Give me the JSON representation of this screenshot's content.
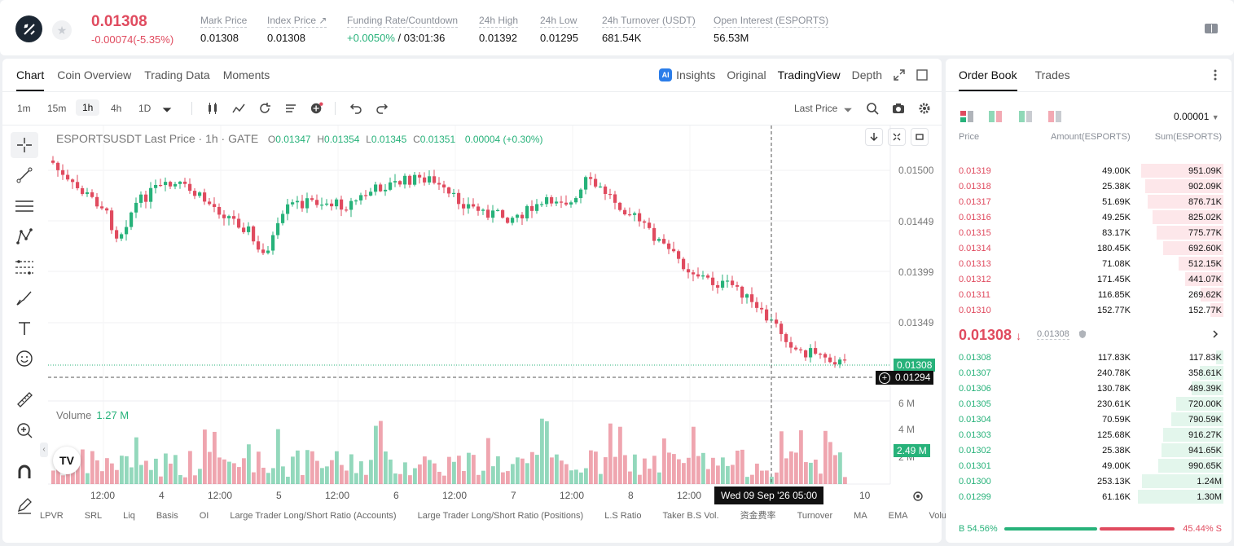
{
  "ticker": {
    "last_price": "0.01308",
    "change": "-0.00074(-5.35%)",
    "stats": [
      {
        "label": "Mark Price",
        "value": "0.01308"
      },
      {
        "label": "Index Price ↗",
        "value": "0.01308"
      },
      {
        "label": "Funding Rate/Countdown",
        "value": "+0.0050%",
        "value2": " / 03:01:36"
      },
      {
        "label": "24h High",
        "value": "0.01392"
      },
      {
        "label": "24h Low",
        "value": "0.01295"
      },
      {
        "label": "24h Turnover (USDT)",
        "value": "681.54K"
      },
      {
        "label": "Open Interest (ESPORTS)",
        "value": "56.53M"
      }
    ]
  },
  "tabs": [
    "Chart",
    "Coin Overview",
    "Trading Data",
    "Moments"
  ],
  "right_tabs": {
    "insights": "Insights",
    "original": "Original",
    "tradingview": "TradingView",
    "depth": "Depth"
  },
  "intervals": [
    "1m",
    "15m",
    "1h",
    "4h",
    "1D"
  ],
  "toolbar": {
    "last_price": "Last Price"
  },
  "legend": {
    "symbol": "ESPORTSUSDT Last Price · 1h · GATE",
    "o_l": "O",
    "o": "0.01347",
    "h_l": "H",
    "h": "0.01354",
    "l_l": "L",
    "l": "0.01345",
    "c_l": "C",
    "c": "0.01351",
    "chg": "0.00004 (+0.30%)"
  },
  "volume": {
    "label": "Volume",
    "value": "1.27 M",
    "axis": [
      "6 M",
      "4 M",
      "2 M"
    ],
    "tag": "2.49 M"
  },
  "price_axis": [
    "0.01500",
    "0.01449",
    "0.01399",
    "0.01349"
  ],
  "price_tags": {
    "last": "0.01308",
    "cross": "0.01294"
  },
  "x_labels": [
    "12:00",
    "4",
    "12:00",
    "5",
    "12:00",
    "6",
    "12:00",
    "7",
    "12:00",
    "8",
    "12:00",
    "10"
  ],
  "crosshair_time": "Wed 09 Sep '26   05:00",
  "indicators": [
    "LPVR",
    "SRL",
    "Liq",
    "Basis",
    "OI",
    "Large Trader Long/Short Ratio (Accounts)",
    "Large Trader Long/Short Ratio (Positions)",
    "L.S Ratio",
    "Taker B.S Vol.",
    "资金费率",
    "Turnover",
    "MA",
    "EMA",
    "Volu"
  ],
  "orderbook": {
    "tabs": [
      "Order Book",
      "Trades"
    ],
    "precision": "0.00001",
    "headers": [
      "Price",
      "Amount(ESPORTS)",
      "Sum(ESPORTS)"
    ],
    "asks": [
      {
        "p": "0.01319",
        "a": "49.00K",
        "s": "951.09K",
        "d": 0.96
      },
      {
        "p": "0.01318",
        "a": "25.38K",
        "s": "902.09K",
        "d": 0.91
      },
      {
        "p": "0.01317",
        "a": "51.69K",
        "s": "876.71K",
        "d": 0.885
      },
      {
        "p": "0.01316",
        "a": "49.25K",
        "s": "825.02K",
        "d": 0.83
      },
      {
        "p": "0.01315",
        "a": "83.17K",
        "s": "775.77K",
        "d": 0.78
      },
      {
        "p": "0.01314",
        "a": "180.45K",
        "s": "692.60K",
        "d": 0.7
      },
      {
        "p": "0.01313",
        "a": "71.08K",
        "s": "512.15K",
        "d": 0.52
      },
      {
        "p": "0.01312",
        "a": "171.45K",
        "s": "441.07K",
        "d": 0.445
      },
      {
        "p": "0.01311",
        "a": "116.85K",
        "s": "269.62K",
        "d": 0.27
      },
      {
        "p": "0.01310",
        "a": "152.77K",
        "s": "152.77K",
        "d": 0.155
      }
    ],
    "mid_price": "0.01308",
    "mid_mark": "0.01308",
    "bids": [
      {
        "p": "0.01308",
        "a": "117.83K",
        "s": "117.83K",
        "d": 0.09
      },
      {
        "p": "0.01307",
        "a": "240.78K",
        "s": "358.61K",
        "d": 0.275
      },
      {
        "p": "0.01306",
        "a": "130.78K",
        "s": "489.39K",
        "d": 0.375
      },
      {
        "p": "0.01305",
        "a": "230.61K",
        "s": "720.00K",
        "d": 0.55
      },
      {
        "p": "0.01304",
        "a": "70.59K",
        "s": "790.59K",
        "d": 0.605
      },
      {
        "p": "0.01303",
        "a": "125.68K",
        "s": "916.27K",
        "d": 0.7
      },
      {
        "p": "0.01302",
        "a": "25.38K",
        "s": "941.65K",
        "d": 0.72
      },
      {
        "p": "0.01301",
        "a": "49.00K",
        "s": "990.65K",
        "d": 0.76
      },
      {
        "p": "0.01300",
        "a": "253.13K",
        "s": "1.24M",
        "d": 0.95
      },
      {
        "p": "0.01299",
        "a": "61.16K",
        "s": "1.30M",
        "d": 1.0
      }
    ],
    "buy_ratio": "B 54.56%",
    "sell_ratio": "45.44% S",
    "buy_fraction": 0.5456
  },
  "colors": {
    "up": "#27b27a",
    "down": "#e04b5f"
  }
}
